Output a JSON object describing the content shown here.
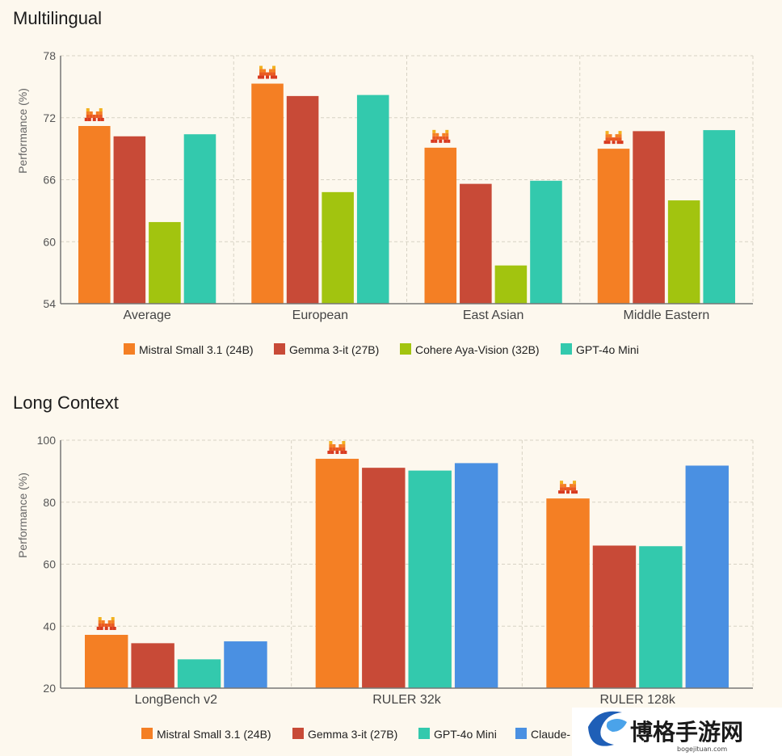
{
  "colors": {
    "mistral": "#f47f24",
    "gemma": "#c84a37",
    "cohere": "#a2c40f",
    "gpt": "#33c9ad",
    "claude": "#4a90e2"
  },
  "winner_icon": "mistral-logo-icon",
  "watermark": {
    "name": "博格手游网",
    "url": "bogejituan.com"
  },
  "chart_data": [
    {
      "type": "bar",
      "title": "Multilingual",
      "ylabel": "Performance (%)",
      "ylim": [
        54,
        78
      ],
      "yticks": [
        54,
        60,
        66,
        72,
        78
      ],
      "categories": [
        "Average",
        "European",
        "East Asian",
        "Middle Eastern"
      ],
      "series": [
        {
          "name": "Mistral Small 3.1 (24B)",
          "color": "#f47f24",
          "values": [
            71.2,
            75.3,
            69.1,
            69.0
          ]
        },
        {
          "name": "Gemma 3-it (27B)",
          "color": "#c84a37",
          "values": [
            70.2,
            74.1,
            65.6,
            70.7
          ]
        },
        {
          "name": "Cohere Aya-Vision (32B)",
          "color": "#a2c40f",
          "values": [
            61.9,
            64.8,
            57.7,
            64.0
          ]
        },
        {
          "name": "GPT-4o Mini",
          "color": "#33c9ad",
          "values": [
            70.4,
            74.2,
            65.9,
            70.8
          ]
        }
      ],
      "grid": true,
      "legend": "bottom",
      "highlight_series": 0
    },
    {
      "type": "bar",
      "title": "Long Context",
      "ylabel": "Performance (%)",
      "ylim": [
        20,
        100
      ],
      "yticks": [
        20,
        40,
        60,
        80,
        100
      ],
      "categories": [
        "LongBench v2",
        "RULER 32k",
        "RULER 128k"
      ],
      "series": [
        {
          "name": "Mistral Small 3.1 (24B)",
          "color": "#f47f24",
          "values": [
            37.2,
            94.0,
            81.2
          ]
        },
        {
          "name": "Gemma 3-it (27B)",
          "color": "#c84a37",
          "values": [
            34.5,
            91.1,
            66.0
          ]
        },
        {
          "name": "GPT-4o Mini",
          "color": "#33c9ad",
          "values": [
            29.3,
            90.2,
            65.8
          ]
        },
        {
          "name": "Claude-",
          "color": "#4a90e2",
          "values": [
            35.1,
            92.6,
            91.8
          ]
        }
      ],
      "grid": true,
      "legend": "bottom",
      "highlight_series": 0
    }
  ]
}
